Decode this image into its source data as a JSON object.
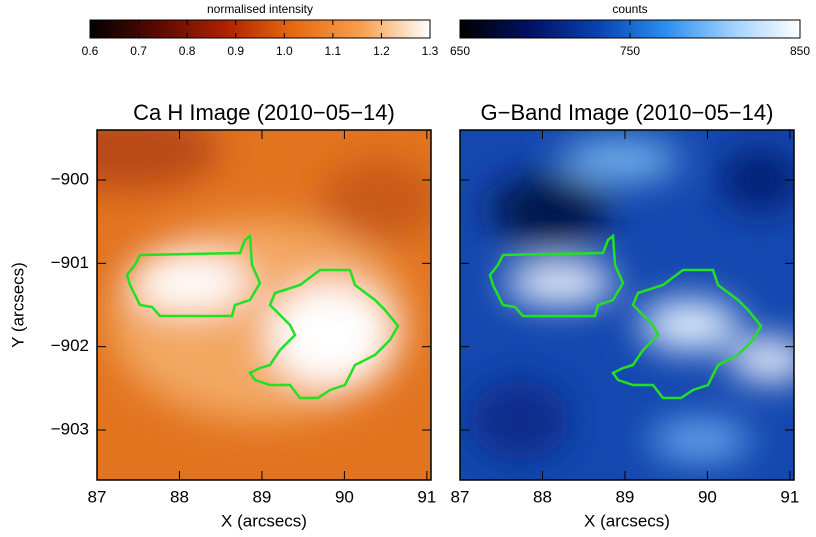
{
  "chart_data": [
    {
      "type": "image",
      "title": "Ca H Image (2010−05−14)",
      "xlabel": "X (arcsecs)",
      "ylabel": "Y (arcsecs)",
      "xlim": [
        87,
        91.05
      ],
      "ylim": [
        -903.6,
        -899.4
      ],
      "xticks": [
        87,
        88,
        89,
        90,
        91
      ],
      "yticks": [
        {
          "value": -900,
          "label": "−900"
        },
        {
          "value": -901,
          "label": "−901"
        },
        {
          "value": -902,
          "label": "−902"
        },
        {
          "value": -903,
          "label": "−903"
        }
      ],
      "contour_color": "#22e022",
      "colorbar": {
        "label": "normalised intensity",
        "lim": [
          0.6,
          1.3
        ],
        "ticks": [
          0.6,
          0.7,
          0.8,
          0.9,
          {
            "value": 1,
            "label": "1.0"
          },
          1.1,
          1.2,
          1.3
        ],
        "colors": [
          "#000000",
          "#5a0a00",
          "#b02000",
          "#e86a10",
          "#f7a050",
          "#ffffff"
        ]
      }
    },
    {
      "type": "image",
      "title": "G−Band Image (2010−05−14)",
      "xlabel": "X (arcsecs)",
      "xlim": [
        87,
        91.05
      ],
      "ylim": [
        -903.6,
        -899.4
      ],
      "xticks": [
        87,
        88,
        89,
        90,
        91
      ],
      "yticks": [
        -900,
        -901,
        -902,
        -903
      ],
      "contour_color": "#22e022",
      "colorbar": {
        "label": "counts",
        "lim": [
          650,
          850
        ],
        "ticks": [
          650,
          750,
          850
        ],
        "colors": [
          "#000000",
          "#001060",
          "#0840b0",
          "#2a8cf0",
          "#9fd0ff",
          "#ffffff"
        ]
      }
    }
  ]
}
